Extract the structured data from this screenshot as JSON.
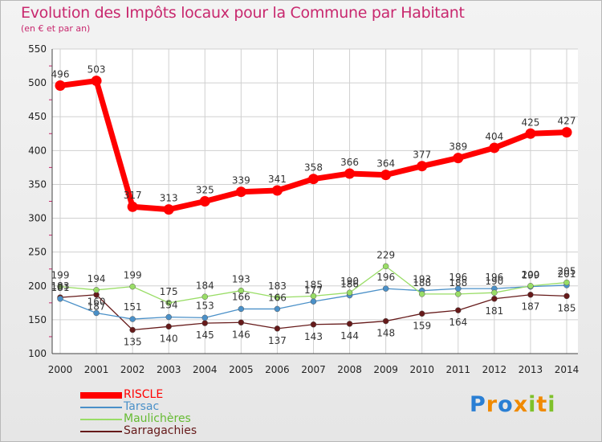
{
  "chart_data": {
    "type": "line",
    "title": "Evolution des Impôts locaux pour la Commune par Habitant",
    "subtitle": "(en € et par an)",
    "xlabel": "",
    "ylabel": "",
    "ylim": [
      100,
      550
    ],
    "yticks": [
      100,
      150,
      200,
      250,
      300,
      350,
      400,
      450,
      500,
      550
    ],
    "grid": true,
    "legend_position": "bottom-left",
    "categories": [
      "2000",
      "2001",
      "2002",
      "2003",
      "2004",
      "2005",
      "2006",
      "2007",
      "2008",
      "2009",
      "2010",
      "2011",
      "2012",
      "2013",
      "2014"
    ],
    "series": [
      {
        "name": "RISCLE",
        "color": "#ff0000",
        "values": [
          496,
          503,
          317,
          313,
          325,
          339,
          341,
          358,
          366,
          364,
          377,
          389,
          404,
          425,
          427
        ]
      },
      {
        "name": "Tarsac",
        "color": "#4a90c8",
        "values": [
          181,
          160,
          151,
          154,
          153,
          166,
          166,
          177,
          186,
          196,
          193,
          196,
          196,
          199,
          201
        ]
      },
      {
        "name": "Maulichères",
        "color": "#99dd66",
        "values": [
          199,
          194,
          199,
          175,
          184,
          193,
          183,
          185,
          190,
          229,
          188,
          188,
          190,
          200,
          205
        ]
      },
      {
        "name": "Sarragachies",
        "color": "#661a1a",
        "values": [
          183,
          187,
          135,
          140,
          145,
          146,
          137,
          143,
          144,
          148,
          159,
          164,
          181,
          187,
          185
        ]
      }
    ]
  },
  "logo": {
    "text": "Proxiti",
    "colors": [
      "#2a7fd4",
      "#f08a00",
      "#2a7fd4",
      "#f08a00",
      "#7fc12a",
      "#f08a00",
      "#7fc12a"
    ]
  }
}
